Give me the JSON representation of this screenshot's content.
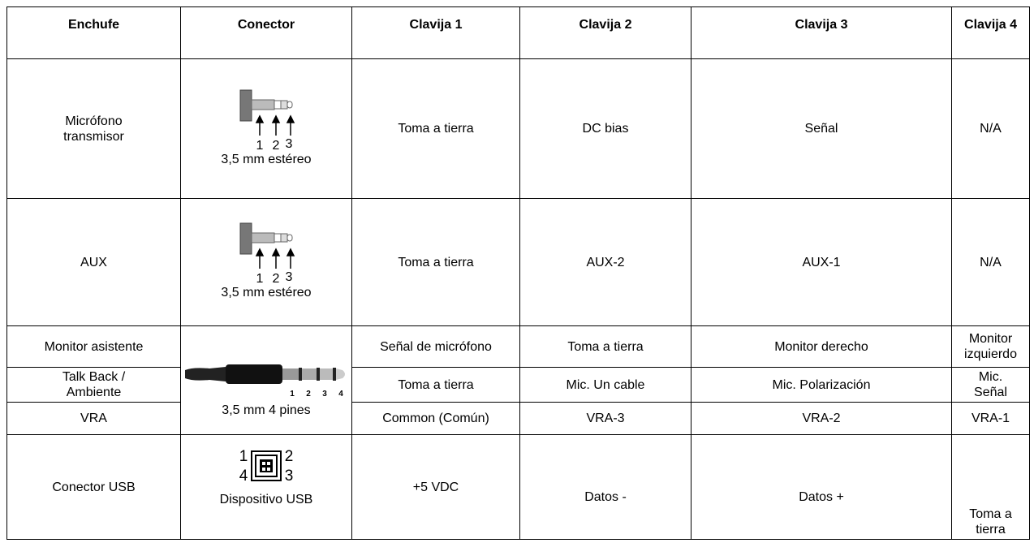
{
  "table": {
    "header": [
      "Enchufe",
      "Conector",
      "Clavija 1",
      "Clavija 2",
      "Clavija 3",
      "Clavija 4"
    ],
    "rows": [
      {
        "plug": "Micrófono transmisor",
        "connector": {
          "pins": [
            "1",
            "2",
            "3"
          ],
          "label": "3,5 mm estéreo"
        },
        "pins": [
          "Toma a tierra",
          "DC bias",
          "Señal",
          "N/A"
        ]
      },
      {
        "plug": "AUX",
        "connector": {
          "pins": [
            "1",
            "2",
            "3"
          ],
          "label": "3,5 mm estéreo"
        },
        "pins": [
          "Toma a tierra",
          "AUX-2",
          "AUX-1",
          "N/A"
        ]
      },
      {
        "plug": "Monitor asistente",
        "connector": {
          "pins": [
            "1",
            "2",
            "3",
            "4"
          ],
          "label": "3,5 mm 4 pines"
        },
        "pins": [
          "Señal de micrófono",
          "Toma a tierra",
          "Monitor derecho",
          "Monitor izquierdo"
        ]
      },
      {
        "plug": "Talk Back / Ambiente",
        "pins": [
          "Toma a tierra",
          "Mic. Un cable",
          "Mic. Polarización",
          "Mic. Señal"
        ]
      },
      {
        "plug": "VRA",
        "pins": [
          "Common (Común)",
          "VRA-3",
          "VRA-2",
          "VRA-1"
        ]
      },
      {
        "plug": "Conector USB",
        "connector": {
          "pins": [
            "1",
            "2",
            "4",
            "3"
          ],
          "label": "Dispositivo USB"
        },
        "pins": [
          "+5 VDC",
          "Datos -",
          "Datos +",
          "Toma a tierra"
        ]
      }
    ]
  }
}
